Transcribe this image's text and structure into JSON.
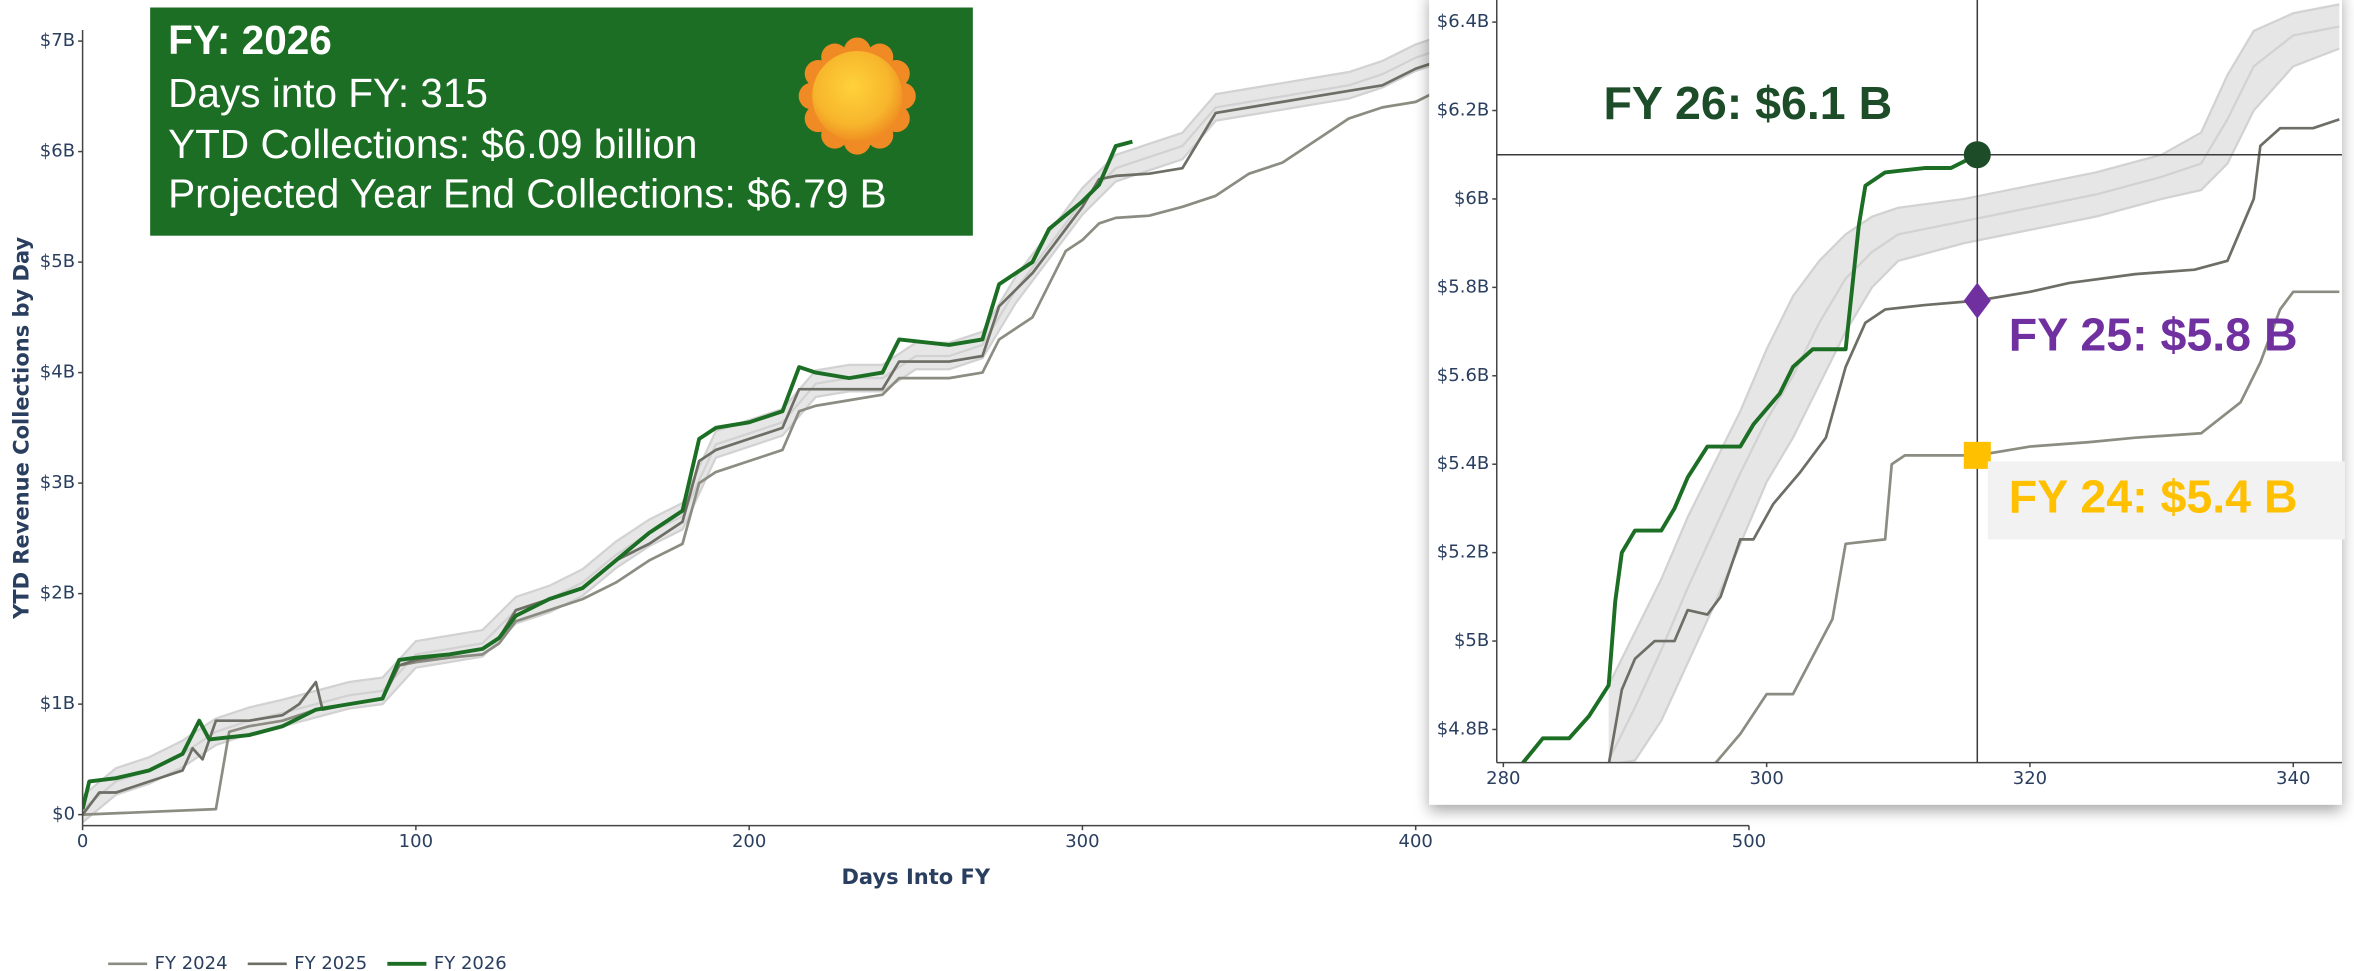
{
  "info_box": {
    "title": "FY: 2026",
    "lines": [
      "Days into FY: 315",
      "YTD Collections: $6.09 billion",
      "Projected Year End Collections: $6.79 B"
    ]
  },
  "chart_data": [
    {
      "type": "line",
      "xlabel": "Days Into FY",
      "ylabel": "YTD Revenue Collections by Day",
      "xlim": [
        0,
        500
      ],
      "xticks": [
        0,
        100,
        200,
        300,
        400,
        500
      ],
      "ylim": [
        -0.1,
        7.1
      ],
      "yticks": [
        {
          "value": 0,
          "label": "$0"
        },
        {
          "value": 1,
          "label": "$1B"
        },
        {
          "value": 2,
          "label": "$2B"
        },
        {
          "value": 3,
          "label": "$3B"
        },
        {
          "value": 4,
          "label": "$4B"
        },
        {
          "value": 5,
          "label": "$5B"
        },
        {
          "value": 6,
          "label": "$6B"
        },
        {
          "value": 7,
          "label": "$7B"
        }
      ],
      "legend": "bottom-left",
      "band": {
        "fill": "#e6e6e6",
        "color": "#d2d2d2",
        "x": [
          0,
          10,
          20,
          30,
          40,
          50,
          60,
          70,
          80,
          90,
          100,
          110,
          120,
          130,
          140,
          150,
          160,
          170,
          180,
          190,
          200,
          210,
          220,
          230,
          240,
          250,
          260,
          270,
          280,
          290,
          300,
          310,
          320,
          330,
          340,
          350,
          360,
          370,
          380,
          390,
          400,
          410
        ],
        "mid": [
          0.05,
          0.3,
          0.4,
          0.55,
          0.75,
          0.85,
          0.92,
          1.0,
          1.08,
          1.12,
          1.45,
          1.5,
          1.55,
          1.85,
          1.95,
          2.1,
          2.35,
          2.55,
          2.7,
          3.35,
          3.45,
          3.55,
          3.9,
          3.95,
          3.95,
          4.15,
          4.15,
          4.25,
          4.75,
          5.15,
          5.55,
          5.85,
          5.95,
          6.05,
          6.4,
          6.45,
          6.5,
          6.55,
          6.6,
          6.7,
          6.85,
          6.95
        ],
        "upper": [
          0.17,
          0.42,
          0.52,
          0.67,
          0.87,
          0.97,
          1.04,
          1.12,
          1.2,
          1.24,
          1.57,
          1.62,
          1.67,
          1.97,
          2.07,
          2.22,
          2.47,
          2.67,
          2.82,
          3.47,
          3.57,
          3.67,
          4.02,
          4.07,
          4.07,
          4.27,
          4.27,
          4.37,
          4.87,
          5.27,
          5.67,
          5.97,
          6.07,
          6.17,
          6.52,
          6.57,
          6.62,
          6.67,
          6.72,
          6.82,
          6.97,
          7.07
        ],
        "lower": [
          -0.07,
          0.18,
          0.28,
          0.43,
          0.63,
          0.73,
          0.8,
          0.88,
          0.96,
          1.0,
          1.33,
          1.38,
          1.43,
          1.73,
          1.83,
          1.98,
          2.23,
          2.43,
          2.58,
          3.23,
          3.33,
          3.43,
          3.78,
          3.83,
          3.83,
          4.03,
          4.03,
          4.13,
          4.63,
          5.03,
          5.43,
          5.73,
          5.83,
          5.93,
          6.28,
          6.33,
          6.38,
          6.43,
          6.48,
          6.58,
          6.73,
          6.83
        ]
      },
      "series": [
        {
          "name": "FY 2024",
          "color": "#8c8c82",
          "x": [
            0,
            40,
            44,
            50,
            60,
            70,
            80,
            90,
            95,
            100,
            110,
            120,
            125,
            130,
            140,
            150,
            160,
            170,
            180,
            185,
            190,
            200,
            210,
            215,
            220,
            230,
            240,
            245,
            260,
            270,
            275,
            285,
            290,
            295,
            300,
            305,
            310,
            320,
            330,
            340,
            350,
            360,
            370,
            380,
            390,
            400,
            410
          ],
          "values": [
            0,
            0.05,
            0.75,
            0.8,
            0.85,
            0.95,
            1.0,
            1.05,
            1.35,
            1.38,
            1.42,
            1.45,
            1.55,
            1.75,
            1.85,
            1.95,
            2.1,
            2.3,
            2.45,
            3.0,
            3.1,
            3.2,
            3.3,
            3.65,
            3.7,
            3.75,
            3.8,
            3.95,
            3.95,
            4.0,
            4.3,
            4.5,
            4.8,
            5.1,
            5.2,
            5.35,
            5.4,
            5.42,
            5.5,
            5.6,
            5.8,
            5.9,
            6.1,
            6.3,
            6.4,
            6.45,
            6.6
          ]
        },
        {
          "name": "FY 2025",
          "color": "#6e6e66",
          "x": [
            0,
            5,
            10,
            20,
            30,
            33,
            36,
            40,
            50,
            60,
            65,
            70,
            72,
            80,
            90,
            95,
            100,
            110,
            120,
            125,
            130,
            140,
            150,
            160,
            170,
            180,
            185,
            190,
            200,
            210,
            215,
            220,
            240,
            245,
            260,
            270,
            275,
            285,
            290,
            300,
            305,
            310,
            320,
            330,
            335,
            340,
            350,
            360,
            370,
            380,
            390,
            400,
            410
          ],
          "values": [
            0,
            0.2,
            0.2,
            0.3,
            0.4,
            0.6,
            0.5,
            0.85,
            0.85,
            0.9,
            1.0,
            1.2,
            0.95,
            1.0,
            1.05,
            1.35,
            1.4,
            1.45,
            1.5,
            1.6,
            1.85,
            1.95,
            2.05,
            2.3,
            2.45,
            2.65,
            3.2,
            3.3,
            3.4,
            3.5,
            3.85,
            3.85,
            3.85,
            4.1,
            4.1,
            4.15,
            4.6,
            4.9,
            5.1,
            5.5,
            5.75,
            5.78,
            5.8,
            5.85,
            6.1,
            6.35,
            6.4,
            6.45,
            6.5,
            6.55,
            6.6,
            6.75,
            6.85
          ]
        },
        {
          "name": "FY 2026",
          "color": "#1b6e23",
          "x": [
            0,
            2,
            10,
            20,
            30,
            35,
            38,
            50,
            60,
            70,
            80,
            90,
            95,
            100,
            110,
            120,
            125,
            130,
            140,
            150,
            160,
            170,
            180,
            185,
            190,
            200,
            210,
            215,
            220,
            230,
            240,
            245,
            260,
            270,
            275,
            285,
            290,
            300,
            305,
            310,
            315
          ],
          "values": [
            0.05,
            0.3,
            0.33,
            0.4,
            0.55,
            0.85,
            0.68,
            0.72,
            0.8,
            0.95,
            1.0,
            1.05,
            1.4,
            1.42,
            1.45,
            1.5,
            1.6,
            1.8,
            1.95,
            2.05,
            2.3,
            2.55,
            2.75,
            3.4,
            3.5,
            3.55,
            3.65,
            4.05,
            4.0,
            3.95,
            4.0,
            4.3,
            4.25,
            4.3,
            4.8,
            5.0,
            5.3,
            5.55,
            5.7,
            6.05,
            6.09
          ]
        }
      ]
    },
    {
      "type": "line",
      "xlim": [
        279.5,
        343.7
      ],
      "xticks": [
        280,
        300,
        320,
        340
      ],
      "ylim": [
        4.725,
        6.45
      ],
      "yticks": [
        {
          "value": 4.8,
          "label": "$4.8B"
        },
        {
          "value": 5,
          "label": "$5B"
        },
        {
          "value": 5.2,
          "label": "$5.2B"
        },
        {
          "value": 5.4,
          "label": "$5.4B"
        },
        {
          "value": 5.6,
          "label": "$5.6B"
        },
        {
          "value": 5.8,
          "label": "$5.8B"
        },
        {
          "value": 6,
          "label": "$6B"
        },
        {
          "value": 6.2,
          "label": "$6.2B"
        },
        {
          "value": 6.4,
          "label": "$6.4B"
        }
      ],
      "band": {
        "fill": "#e6e6e6",
        "color": "#d2d2d2",
        "x": [
          288,
          290,
          292,
          294,
          296,
          298,
          300,
          302,
          304,
          306,
          308,
          310,
          315,
          320,
          325,
          330,
          333,
          335,
          337,
          340,
          343.5
        ],
        "mid": [
          4.73,
          4.85,
          4.98,
          5.12,
          5.25,
          5.38,
          5.5,
          5.6,
          5.72,
          5.82,
          5.88,
          5.92,
          5.95,
          5.98,
          6.01,
          6.05,
          6.08,
          6.18,
          6.3,
          6.37,
          6.39
        ],
        "upper": [
          4.9,
          5.02,
          5.14,
          5.28,
          5.4,
          5.52,
          5.66,
          5.78,
          5.86,
          5.92,
          5.96,
          5.98,
          6.0,
          6.03,
          6.06,
          6.1,
          6.15,
          6.28,
          6.38,
          6.42,
          6.44
        ],
        "lower": [
          4.72,
          4.73,
          4.82,
          4.95,
          5.08,
          5.22,
          5.36,
          5.46,
          5.58,
          5.7,
          5.8,
          5.86,
          5.9,
          5.93,
          5.96,
          6.0,
          6.02,
          6.08,
          6.2,
          6.3,
          6.34
        ]
      },
      "series": [
        {
          "color": "#8c8c82",
          "x": [
            296,
            298,
            300,
            302,
            305,
            306,
            309,
            309.5,
            310.5,
            316,
            320,
            324.5,
            328,
            333,
            336,
            337.5,
            339,
            340,
            343.5
          ],
          "values": [
            4.72,
            4.79,
            4.88,
            4.88,
            5.05,
            5.22,
            5.23,
            5.4,
            5.42,
            5.42,
            5.44,
            5.45,
            5.46,
            5.47,
            5.54,
            5.63,
            5.75,
            5.79,
            5.79
          ]
        },
        {
          "color": "#6e6e66",
          "x": [
            288,
            289,
            290,
            291.5,
            293,
            294,
            295.5,
            296.5,
            298,
            299,
            300.5,
            302.5,
            304.5,
            306,
            307.5,
            309,
            312,
            316,
            320,
            323,
            328,
            332.5,
            335,
            337,
            337.5,
            339,
            341.5,
            343.5
          ],
          "values": [
            4.72,
            4.89,
            4.96,
            5.0,
            5.0,
            5.07,
            5.06,
            5.1,
            5.23,
            5.23,
            5.31,
            5.38,
            5.46,
            5.62,
            5.72,
            5.75,
            5.76,
            5.77,
            5.79,
            5.81,
            5.83,
            5.84,
            5.86,
            6.0,
            6.12,
            6.16,
            6.16,
            6.18
          ]
        },
        {
          "color": "#1b6e23",
          "x": [
            280,
            281.5,
            283,
            285,
            286.5,
            288,
            288.5,
            289,
            290,
            292,
            293,
            294,
            295.5,
            298,
            299,
            301,
            302,
            303.5,
            306,
            307,
            307.5,
            309,
            312,
            314,
            316
          ],
          "values": [
            4.68,
            4.725,
            4.78,
            4.78,
            4.83,
            4.9,
            5.09,
            5.2,
            5.25,
            5.25,
            5.3,
            5.37,
            5.44,
            5.44,
            5.49,
            5.56,
            5.62,
            5.66,
            5.66,
            5.94,
            6.03,
            6.06,
            6.07,
            6.07,
            6.1
          ]
        }
      ],
      "crosshair": {
        "x": 316,
        "y": 6.1,
        "color": "#3a3a3a"
      },
      "markers": [
        {
          "x": 316,
          "y": 6.1,
          "symbol": "circle",
          "color": "#1d4d28",
          "label": "FY 26: $6.1 B"
        },
        {
          "x": 316,
          "y": 5.77,
          "symbol": "diamond",
          "color": "#7030a0",
          "label": "FY 25: $5.8 B"
        },
        {
          "x": 316,
          "y": 5.42,
          "symbol": "square",
          "color": "#ffc000",
          "label": "FY 24: $5.4 B",
          "label_bg": "#f2f2f2"
        }
      ]
    }
  ]
}
